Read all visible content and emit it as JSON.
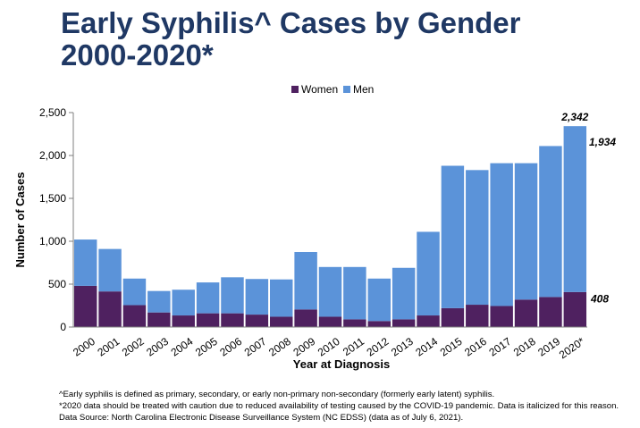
{
  "title": {
    "line1": "Early Syphilis^ Cases by Gender",
    "line2": "2000-2020*"
  },
  "colors": {
    "title": "#1f3864",
    "women": "#4f2160",
    "men": "#5b93d9"
  },
  "chart_data": {
    "type": "bar",
    "stacked": true,
    "categories": [
      "2000",
      "2001",
      "2002",
      "2003",
      "2004",
      "2005",
      "2006",
      "2007",
      "2008",
      "2009",
      "2010",
      "2011",
      "2012",
      "2013",
      "2014",
      "2015",
      "2016",
      "2017",
      "2018",
      "2019",
      "2020*"
    ],
    "series": [
      {
        "name": "Women",
        "color": "#4f2160",
        "values": [
          480,
          415,
          255,
          170,
          135,
          160,
          160,
          145,
          120,
          205,
          120,
          90,
          70,
          90,
          135,
          220,
          260,
          245,
          320,
          350,
          408
        ]
      },
      {
        "name": "Men",
        "color": "#5b93d9",
        "values": [
          540,
          495,
          310,
          250,
          300,
          360,
          420,
          415,
          435,
          670,
          580,
          610,
          495,
          600,
          975,
          1660,
          1570,
          1665,
          1590,
          1760,
          1934
        ]
      }
    ],
    "totals_labeled": [
      {
        "category": "2020*",
        "total": "2,342"
      }
    ],
    "series_labels": [
      {
        "category": "2020*",
        "series": "Men",
        "text": "1,934"
      },
      {
        "category": "2020*",
        "series": "Women",
        "text": "408"
      }
    ],
    "xlabel": "Year at Diagnosis",
    "ylabel": "Number of Cases",
    "ylim": [
      0,
      2500
    ],
    "yticks": [
      0,
      500,
      1000,
      1500,
      2000,
      2500
    ],
    "ytick_labels": [
      "0",
      "500",
      "1,000",
      "1,500",
      "2,000",
      "2,500"
    ],
    "legend_position": "top",
    "grid": false
  },
  "footnotes": [
    "^Early syphilis is defined as primary, secondary, or early non-primary non-secondary (formerly early latent) syphilis.",
    "*2020 data should be treated with caution due to reduced availability of testing caused by the COVID-19 pandemic. Data is italicized for this reason.",
    "Data Source: North Carolina Electronic Disease Surveillance System (NC EDSS) (data as of July 6, 2021)."
  ]
}
